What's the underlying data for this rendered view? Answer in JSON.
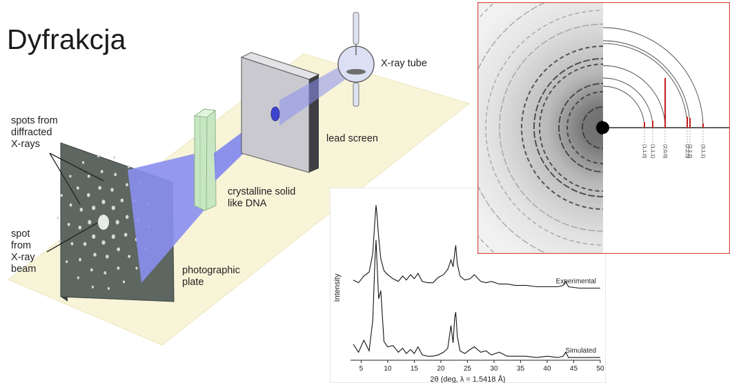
{
  "title": "Dyfrakcja",
  "colors": {
    "floor": "#f8f4d8",
    "beam": "#8a8ff0",
    "crystal": "#c7e6c2",
    "screen": "#c9c9cf",
    "plate": "#5d6660",
    "spectrum_line": "#111111",
    "saed_frame": "#d9534f",
    "peak_marker": "#c41a1a"
  },
  "setup_labels": {
    "tube": "X-ray tube",
    "screen": "lead screen",
    "crystal_l1": "crystalline solid",
    "crystal_l2": "like DNA",
    "plate_l1": "photographic",
    "plate_l2": "plate",
    "spots_l1": "spots from",
    "spots_l2": "diffracted",
    "spots_l3": "X-rays",
    "beam_l1": "spot",
    "beam_l2": "from",
    "beam_l3": "X-ray",
    "beam_l4": "beam"
  },
  "saed": {
    "ring_labels": [
      "(1,1,0)",
      "(1,1,1)",
      "(2,0,0)",
      "(2,2,0)",
      "(2,2,2)",
      "(3,1,1)"
    ]
  },
  "chart_data": {
    "type": "line",
    "title": "",
    "xlabel": "2θ (deg, λ = 1.5418 Å)",
    "ylabel": "Intensity",
    "xlim": [
      3,
      50
    ],
    "ylim": [
      0,
      12.5
    ],
    "x_ticks": [
      5,
      10,
      15,
      20,
      25,
      30,
      35,
      40,
      45,
      50
    ],
    "x": [
      3.5,
      4.5,
      5.5,
      6.5,
      7.2,
      7.6,
      7.8,
      8.0,
      8.3,
      8.7,
      9.3,
      10.0,
      11.0,
      12.0,
      12.8,
      13.5,
      14.3,
      15.0,
      15.7,
      16.5,
      17.5,
      18.5,
      19.5,
      20.5,
      21.3,
      21.9,
      22.3,
      22.6,
      22.8,
      23.1,
      23.6,
      24.5,
      25.5,
      26.3,
      27.5,
      28.5,
      29.5,
      31.0,
      32.5,
      34.0,
      36.0,
      38.0,
      40.0,
      42.0,
      43.0,
      43.5,
      44.0,
      46.0,
      48.0,
      50.0
    ],
    "series": [
      {
        "name": "Experimental",
        "values": [
          6.0,
          5.8,
          6.3,
          6.6,
          8.0,
          10.5,
          11.6,
          10.8,
          9.2,
          7.6,
          6.7,
          6.4,
          6.1,
          5.9,
          6.3,
          6.0,
          6.4,
          6.1,
          6.5,
          5.9,
          5.8,
          5.8,
          6.2,
          6.4,
          6.8,
          7.5,
          7.0,
          8.0,
          8.6,
          7.2,
          6.3,
          6.0,
          6.1,
          6.4,
          5.9,
          5.8,
          5.9,
          5.7,
          5.7,
          5.6,
          5.6,
          5.5,
          5.5,
          5.5,
          5.6,
          5.9,
          5.5,
          5.4,
          5.4,
          5.4
        ]
      },
      {
        "name": "Simulated",
        "values": [
          1.2,
          0.6,
          1.5,
          0.7,
          3.0,
          7.5,
          9.0,
          7.2,
          4.6,
          5.2,
          1.4,
          1.0,
          1.1,
          0.6,
          0.9,
          0.5,
          0.8,
          0.5,
          1.0,
          0.4,
          0.3,
          0.3,
          0.4,
          0.6,
          0.9,
          2.6,
          1.3,
          3.2,
          3.6,
          1.8,
          0.7,
          0.5,
          0.8,
          1.0,
          0.6,
          0.7,
          0.4,
          0.6,
          0.3,
          0.3,
          0.3,
          0.2,
          0.3,
          0.2,
          0.3,
          0.6,
          0.2,
          0.2,
          0.2,
          0.2
        ]
      }
    ],
    "legend": "inline labels at right"
  }
}
